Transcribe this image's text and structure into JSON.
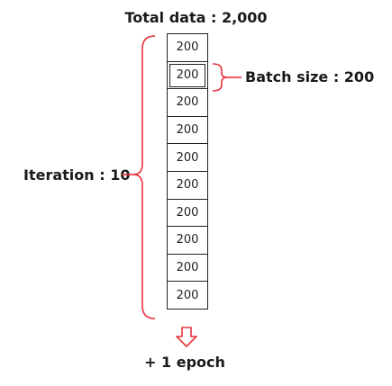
{
  "title": "Total data : 2,000",
  "iteration_label": "Iteration : 10",
  "batch_label": "Batch size : 200",
  "epoch_label": "+ 1 epoch",
  "batches": [
    "200",
    "200",
    "200",
    "200",
    "200",
    "200",
    "200",
    "200",
    "200",
    "200"
  ],
  "colors": {
    "bracket": "#e8323c",
    "box": "#222222"
  }
}
